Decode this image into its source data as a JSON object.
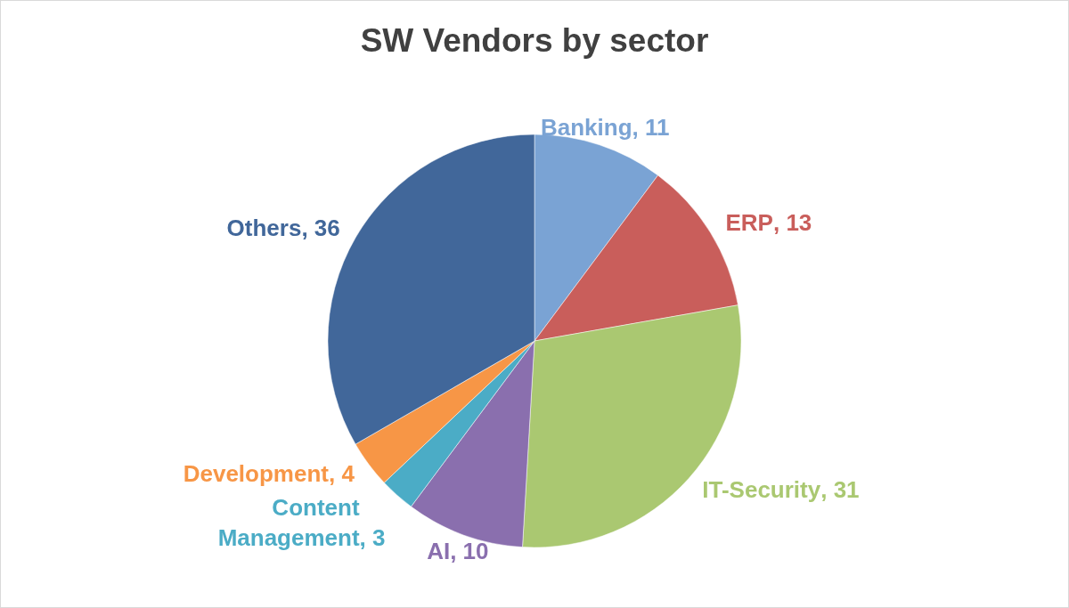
{
  "chart_data": {
    "type": "pie",
    "title": "SW Vendors by sector",
    "categories": [
      "Banking",
      "ERP",
      "IT-Security",
      "AI",
      "Content Management",
      "Development",
      "Others"
    ],
    "values": [
      11,
      13,
      31,
      10,
      3,
      4,
      36
    ],
    "colors": [
      "#7aa3d4",
      "#c95e5b",
      "#aac871",
      "#8a6fae",
      "#4bacc6",
      "#f79646",
      "#41679a"
    ],
    "value_labels": [
      ", 11",
      ", 13",
      ", 31",
      ", 10",
      ", 3",
      ", 4",
      ", 36"
    ],
    "legend": false
  }
}
